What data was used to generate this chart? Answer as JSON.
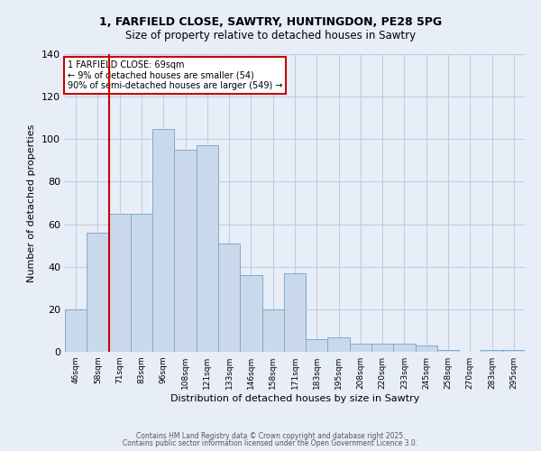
{
  "title1": "1, FARFIELD CLOSE, SAWTRY, HUNTINGDON, PE28 5PG",
  "title2": "Size of property relative to detached houses in Sawtry",
  "xlabel": "Distribution of detached houses by size in Sawtry",
  "ylabel": "Number of detached properties",
  "categories": [
    "46sqm",
    "58sqm",
    "71sqm",
    "83sqm",
    "96sqm",
    "108sqm",
    "121sqm",
    "133sqm",
    "146sqm",
    "158sqm",
    "171sqm",
    "183sqm",
    "195sqm",
    "208sqm",
    "220sqm",
    "233sqm",
    "245sqm",
    "258sqm",
    "270sqm",
    "283sqm",
    "295sqm"
  ],
  "values": [
    20,
    56,
    65,
    65,
    105,
    95,
    97,
    51,
    36,
    20,
    37,
    6,
    7,
    4,
    4,
    4,
    3,
    1,
    0,
    1,
    1
  ],
  "bar_color": "#c9d9eb",
  "bar_edge_color": "#7faacc",
  "grid_color": "#c0cce0",
  "bg_color": "#e8eef8",
  "red_line_x": 1.5,
  "red_line_color": "#cc0000",
  "annotation_text": "1 FARFIELD CLOSE: 69sqm\n← 9% of detached houses are smaller (54)\n90% of semi-detached houses are larger (549) →",
  "annotation_box_color": "#ffffff",
  "annotation_box_edge": "#cc0000",
  "footer1": "Contains HM Land Registry data © Crown copyright and database right 2025.",
  "footer2": "Contains public sector information licensed under the Open Government Licence 3.0.",
  "ylim": [
    0,
    140
  ],
  "yticks": [
    0,
    20,
    40,
    60,
    80,
    100,
    120,
    140
  ]
}
